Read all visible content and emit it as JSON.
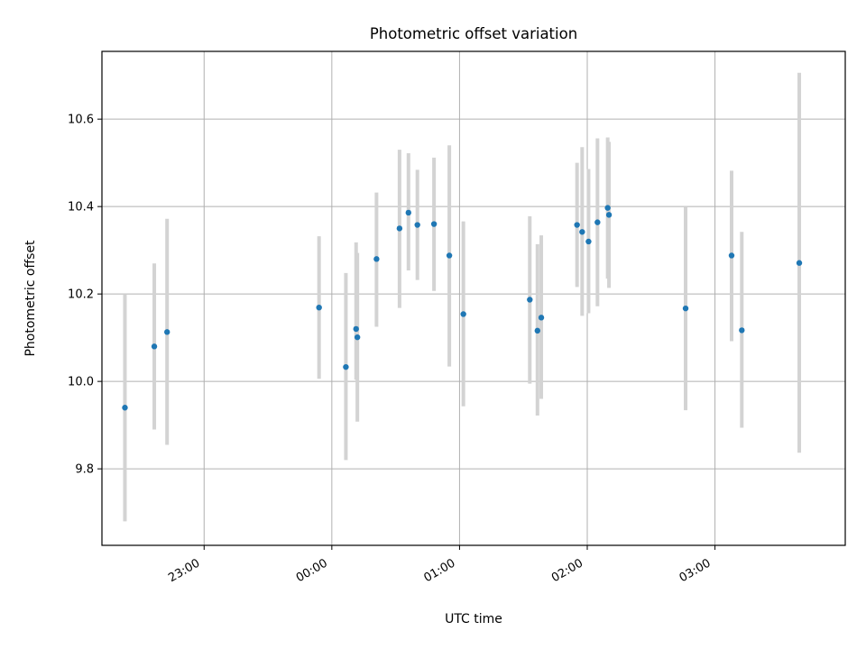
{
  "colors": {
    "point": "#1f77b4",
    "errorbar": "#d3d3d3",
    "grid": "#b0b0b0",
    "axes": "#000000",
    "background": "#ffffff"
  },
  "chart_data": {
    "type": "scatter",
    "title": "Photometric offset variation",
    "xlabel": "UTC time",
    "ylabel": "Photometric offset",
    "grid": true,
    "x_unit": "hours relative to 00:00 UTC",
    "xlim": [
      -1.8,
      4.02
    ],
    "ylim": [
      9.625,
      10.755
    ],
    "x_ticks": [
      {
        "value": -1,
        "label": "23:00"
      },
      {
        "value": 0,
        "label": "00:00"
      },
      {
        "value": 1,
        "label": "01:00"
      },
      {
        "value": 2,
        "label": "02:00"
      },
      {
        "value": 3,
        "label": "03:00"
      }
    ],
    "y_ticks": [
      {
        "value": 9.8,
        "label": "9.8"
      },
      {
        "value": 10.0,
        "label": "10.0"
      },
      {
        "value": 10.2,
        "label": "10.2"
      },
      {
        "value": 10.4,
        "label": "10.4"
      },
      {
        "value": 10.6,
        "label": "10.6"
      }
    ],
    "series": [
      {
        "name": "Photometric offset",
        "points": [
          {
            "x": -1.62,
            "y": 9.94,
            "yerr_low": 9.68,
            "yerr_high": 10.2
          },
          {
            "x": -1.39,
            "y": 10.08,
            "yerr_low": 9.89,
            "yerr_high": 10.27
          },
          {
            "x": -1.29,
            "y": 10.113,
            "yerr_low": 9.855,
            "yerr_high": 10.372
          },
          {
            "x": -0.1,
            "y": 10.169,
            "yerr_low": 10.006,
            "yerr_high": 10.332
          },
          {
            "x": 0.11,
            "y": 10.033,
            "yerr_low": 9.82,
            "yerr_high": 10.248
          },
          {
            "x": 0.19,
            "y": 10.12,
            "yerr_low": 10.004,
            "yerr_high": 10.318
          },
          {
            "x": 0.2,
            "y": 10.101,
            "yerr_low": 9.908,
            "yerr_high": 10.294
          },
          {
            "x": 0.35,
            "y": 10.28,
            "yerr_low": 10.125,
            "yerr_high": 10.432
          },
          {
            "x": 0.53,
            "y": 10.35,
            "yerr_low": 10.168,
            "yerr_high": 10.53
          },
          {
            "x": 0.6,
            "y": 10.386,
            "yerr_low": 10.254,
            "yerr_high": 10.522
          },
          {
            "x": 0.67,
            "y": 10.358,
            "yerr_low": 10.232,
            "yerr_high": 10.484
          },
          {
            "x": 0.8,
            "y": 10.36,
            "yerr_low": 10.207,
            "yerr_high": 10.512
          },
          {
            "x": 0.92,
            "y": 10.288,
            "yerr_low": 10.034,
            "yerr_high": 10.54
          },
          {
            "x": 1.03,
            "y": 10.154,
            "yerr_low": 9.943,
            "yerr_high": 10.366
          },
          {
            "x": 1.55,
            "y": 10.187,
            "yerr_low": 9.995,
            "yerr_high": 10.378
          },
          {
            "x": 1.61,
            "y": 10.116,
            "yerr_low": 9.922,
            "yerr_high": 10.314
          },
          {
            "x": 1.64,
            "y": 10.146,
            "yerr_low": 9.96,
            "yerr_high": 10.334
          },
          {
            "x": 1.92,
            "y": 10.358,
            "yerr_low": 10.216,
            "yerr_high": 10.5
          },
          {
            "x": 1.96,
            "y": 10.342,
            "yerr_low": 10.15,
            "yerr_high": 10.536
          },
          {
            "x": 2.01,
            "y": 10.32,
            "yerr_low": 10.156,
            "yerr_high": 10.486
          },
          {
            "x": 2.08,
            "y": 10.364,
            "yerr_low": 10.172,
            "yerr_high": 10.556
          },
          {
            "x": 2.16,
            "y": 10.397,
            "yerr_low": 10.235,
            "yerr_high": 10.558
          },
          {
            "x": 2.17,
            "y": 10.381,
            "yerr_low": 10.214,
            "yerr_high": 10.548
          },
          {
            "x": 2.77,
            "y": 10.167,
            "yerr_low": 9.934,
            "yerr_high": 10.4
          },
          {
            "x": 3.13,
            "y": 10.288,
            "yerr_low": 10.092,
            "yerr_high": 10.482
          },
          {
            "x": 3.21,
            "y": 10.117,
            "yerr_low": 9.894,
            "yerr_high": 10.342
          },
          {
            "x": 3.66,
            "y": 10.271,
            "yerr_low": 9.837,
            "yerr_high": 10.706
          }
        ]
      }
    ]
  }
}
